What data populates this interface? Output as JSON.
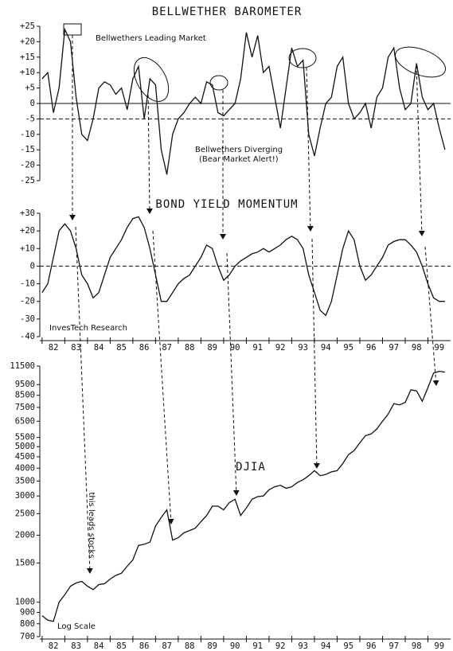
{
  "chart_data": [
    {
      "type": "line",
      "title": "BELLWETHER BAROMETER",
      "annotations": [
        "Bellwethers Leading Market",
        "Bellwethers Diverging",
        "(Bear Market Alert!)"
      ],
      "x": [
        82,
        82.25,
        82.5,
        82.75,
        83,
        83.25,
        83.5,
        83.75,
        84,
        84.25,
        84.5,
        84.75,
        85,
        85.25,
        85.5,
        85.75,
        86,
        86.25,
        86.5,
        86.75,
        87,
        87.25,
        87.5,
        87.75,
        88,
        88.25,
        88.5,
        88.75,
        89,
        89.25,
        89.5,
        89.75,
        90,
        90.25,
        90.5,
        90.75,
        91,
        91.25,
        91.5,
        91.75,
        92,
        92.25,
        92.5,
        92.75,
        93,
        93.25,
        93.5,
        93.75,
        94,
        94.25,
        94.5,
        94.75,
        95,
        95.25,
        95.5,
        95.75,
        96,
        96.25,
        96.5,
        96.75,
        97,
        97.25,
        97.5,
        97.75,
        98,
        98.25,
        98.5,
        98.75,
        99,
        99.25,
        99.5,
        99.75
      ],
      "series": [
        {
          "color": "#111111",
          "values": [
            8,
            10,
            -3,
            5,
            24,
            20,
            2,
            -10,
            -12,
            -5,
            5,
            7,
            6,
            3,
            5,
            -2,
            8,
            12,
            -5,
            8,
            6,
            -15,
            -23,
            -10,
            -5,
            -3,
            0,
            2,
            0,
            7,
            6,
            -3,
            -4,
            -2,
            0,
            8,
            23,
            15,
            22,
            10,
            12,
            2,
            -8,
            5,
            18,
            12,
            14,
            -10,
            -17,
            -8,
            0,
            2,
            12,
            15,
            0,
            -5,
            -3,
            0,
            -8,
            2,
            5,
            15,
            18,
            5,
            -2,
            0,
            13,
            2,
            -2,
            0,
            -8,
            -15
          ]
        }
      ],
      "xlim": [
        81.9,
        100
      ],
      "ylim": [
        -25,
        25
      ],
      "yticks": [
        {
          "value": 25,
          "label": "+25"
        },
        {
          "value": 20,
          "label": "+20"
        },
        {
          "value": 15,
          "label": "+15"
        },
        {
          "value": 10,
          "label": "+10"
        },
        {
          "value": 5,
          "label": "+5"
        },
        0,
        -5,
        -10,
        -15,
        -20,
        -25
      ],
      "hlines": [
        {
          "value": 0,
          "style": "solid"
        },
        {
          "value": -5,
          "style": "dashed"
        }
      ]
    },
    {
      "type": "line",
      "title": "BOND YIELD MOMENTUM",
      "annotations": [
        "InvesTech Research"
      ],
      "x": [
        82,
        82.25,
        82.5,
        82.75,
        83,
        83.25,
        83.5,
        83.75,
        84,
        84.25,
        84.5,
        84.75,
        85,
        85.25,
        85.5,
        85.75,
        86,
        86.25,
        86.5,
        86.75,
        87,
        87.25,
        87.5,
        87.75,
        88,
        88.25,
        88.5,
        88.75,
        89,
        89.25,
        89.5,
        89.75,
        90,
        90.25,
        90.5,
        90.75,
        91,
        91.25,
        91.5,
        91.75,
        92,
        92.25,
        92.5,
        92.75,
        93,
        93.25,
        93.5,
        93.75,
        94,
        94.25,
        94.5,
        94.75,
        95,
        95.25,
        95.5,
        95.75,
        96,
        96.25,
        96.5,
        96.75,
        97,
        97.25,
        97.5,
        97.75,
        98,
        98.25,
        98.5,
        98.75,
        99,
        99.25,
        99.5,
        99.75
      ],
      "series": [
        {
          "color": "#111111",
          "values": [
            -15,
            -10,
            5,
            20,
            24,
            20,
            10,
            -5,
            -10,
            -18,
            -15,
            -5,
            5,
            10,
            15,
            22,
            27,
            28,
            22,
            10,
            -5,
            -20,
            -20,
            -15,
            -10,
            -7,
            -5,
            0,
            5,
            12,
            10,
            0,
            -8,
            -5,
            0,
            3,
            5,
            7,
            8,
            10,
            8,
            10,
            12,
            15,
            17,
            15,
            10,
            -5,
            -15,
            -25,
            -28,
            -20,
            -5,
            10,
            20,
            15,
            0,
            -8,
            -5,
            0,
            5,
            12,
            14,
            15,
            15,
            12,
            8,
            0,
            -10,
            -18,
            -20,
            -20
          ]
        }
      ],
      "xlim": [
        81.9,
        100
      ],
      "ylim": [
        -40,
        30
      ],
      "yticks": [
        {
          "value": 30,
          "label": "+30"
        },
        {
          "value": 20,
          "label": "+20"
        },
        {
          "value": 10,
          "label": "+10"
        },
        0,
        -10,
        -20,
        -30,
        -40
      ],
      "xticks": [
        {
          "value": 82.5,
          "label": "82"
        },
        {
          "value": 83.5,
          "label": "83"
        },
        {
          "value": 84.5,
          "label": "84"
        },
        {
          "value": 85.5,
          "label": "85"
        },
        {
          "value": 86.5,
          "label": "86"
        },
        {
          "value": 87.5,
          "label": "87"
        },
        {
          "value": 88.5,
          "label": "88"
        },
        {
          "value": 89.5,
          "label": "89"
        },
        {
          "value": 90.5,
          "label": "90"
        },
        {
          "value": 91.5,
          "label": "91"
        },
        {
          "value": 92.5,
          "label": "92"
        },
        {
          "value": 93.5,
          "label": "93"
        },
        {
          "value": 94.5,
          "label": "94"
        },
        {
          "value": 95.5,
          "label": "95"
        },
        {
          "value": 96.5,
          "label": "96"
        },
        {
          "value": 97.5,
          "label": "97"
        },
        {
          "value": 98.5,
          "label": "98"
        },
        {
          "value": 99.5,
          "label": "99"
        }
      ],
      "hlines": [
        {
          "value": 0,
          "style": "dashed"
        }
      ]
    },
    {
      "type": "line",
      "title": "DJIA",
      "annotations": [
        "this leads stocks",
        "Log Scale"
      ],
      "x": [
        82,
        82.25,
        82.5,
        82.75,
        83,
        83.25,
        83.5,
        83.75,
        84,
        84.25,
        84.5,
        84.75,
        85,
        85.25,
        85.5,
        85.75,
        86,
        86.25,
        86.5,
        86.75,
        87,
        87.25,
        87.5,
        87.75,
        88,
        88.25,
        88.5,
        88.75,
        89,
        89.25,
        89.5,
        89.75,
        90,
        90.25,
        90.5,
        90.75,
        91,
        91.25,
        91.5,
        91.75,
        92,
        92.25,
        92.5,
        92.75,
        93,
        93.25,
        93.5,
        93.75,
        94,
        94.25,
        94.5,
        94.75,
        95,
        95.25,
        95.5,
        95.75,
        96,
        96.25,
        96.5,
        96.75,
        97,
        97.25,
        97.5,
        97.75,
        98,
        98.25,
        98.5,
        98.75,
        99,
        99.25,
        99.5,
        99.75
      ],
      "series": [
        {
          "color": "#111111",
          "values": [
            870,
            830,
            820,
            1000,
            1080,
            1180,
            1220,
            1240,
            1180,
            1140,
            1200,
            1210,
            1270,
            1320,
            1350,
            1450,
            1550,
            1800,
            1820,
            1860,
            2200,
            2400,
            2600,
            1900,
            1950,
            2050,
            2100,
            2150,
            2300,
            2450,
            2700,
            2700,
            2600,
            2800,
            2900,
            2450,
            2650,
            2900,
            2980,
            3000,
            3200,
            3300,
            3350,
            3250,
            3300,
            3450,
            3550,
            3700,
            3900,
            3700,
            3750,
            3850,
            3900,
            4200,
            4600,
            4800,
            5200,
            5600,
            5700,
            6000,
            6500,
            7000,
            7800,
            7700,
            7900,
            9000,
            8900,
            8000,
            9200,
            10700,
            10900,
            10800
          ]
        }
      ],
      "xlim": [
        81.9,
        100
      ],
      "ylim": [
        700,
        11500
      ],
      "log_scale": true,
      "yticks": [
        700,
        800,
        900,
        1000,
        1500,
        2000,
        2500,
        3000,
        3500,
        4000,
        4500,
        5000,
        5500,
        6500,
        7500,
        8500,
        9500,
        11500
      ],
      "xticks": [
        {
          "value": 82.5,
          "label": "82"
        },
        {
          "value": 83.5,
          "label": "83"
        },
        {
          "value": 84.5,
          "label": "84"
        },
        {
          "value": 85.5,
          "label": "85"
        },
        {
          "value": 86.5,
          "label": "86"
        },
        {
          "value": 87.5,
          "label": "87"
        },
        {
          "value": 88.5,
          "label": "88"
        },
        {
          "value": 89.5,
          "label": "89"
        },
        {
          "value": 90.5,
          "label": "90"
        },
        {
          "value": 91.5,
          "label": "91"
        },
        {
          "value": 92.5,
          "label": "92"
        },
        {
          "value": 93.5,
          "label": "93"
        },
        {
          "value": 94.5,
          "label": "94"
        },
        {
          "value": 95.5,
          "label": "95"
        },
        {
          "value": 96.5,
          "label": "96"
        },
        {
          "value": 97.5,
          "label": "97"
        },
        {
          "value": 98.5,
          "label": "98"
        },
        {
          "value": 99.5,
          "label": "99"
        }
      ]
    }
  ]
}
